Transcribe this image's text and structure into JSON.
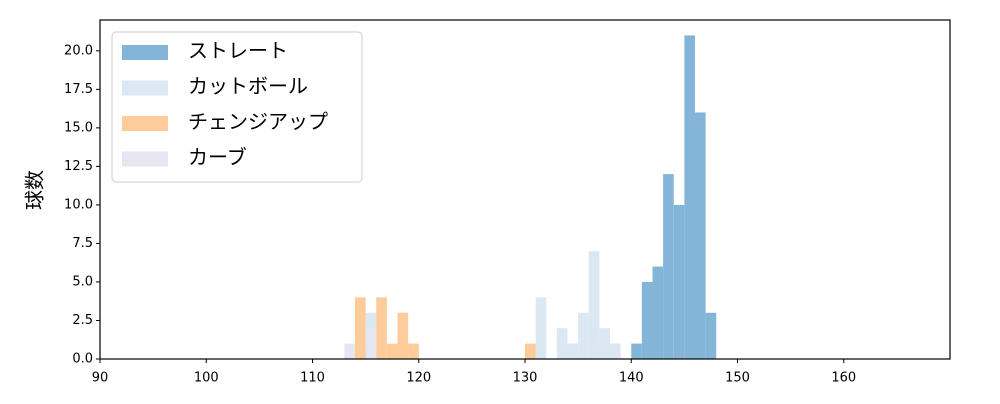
{
  "chart_data": {
    "type": "histogram",
    "ylabel": "球数",
    "xlim": [
      90,
      170
    ],
    "ylim": [
      0,
      22
    ],
    "xticks": [
      90,
      100,
      110,
      120,
      130,
      140,
      150,
      160
    ],
    "yticks": [
      {
        "value": 0,
        "label": "0.0"
      },
      {
        "value": 2.5,
        "label": "2.5"
      },
      {
        "value": 5,
        "label": "5.0"
      },
      {
        "value": 7.5,
        "label": "7.5"
      },
      {
        "value": 10,
        "label": "10.0"
      },
      {
        "value": 12.5,
        "label": "12.5"
      },
      {
        "value": 15,
        "label": "15.0"
      },
      {
        "value": 17.5,
        "label": "17.5"
      },
      {
        "value": 20,
        "label": "20.0"
      }
    ],
    "legend": "upper left",
    "series": [
      {
        "name": "ストレート",
        "color": "#84b5d9",
        "bins": [
          137,
          138,
          139,
          140,
          141,
          142,
          143,
          144,
          145,
          146,
          147,
          148
        ],
        "values": [
          1,
          0,
          0,
          1,
          5,
          6,
          12,
          10,
          21,
          16,
          3
        ]
      },
      {
        "name": "カットボール",
        "color": "#dbe7f3",
        "bins": [
          115,
          116,
          117,
          118,
          119,
          120,
          121,
          122,
          123,
          124,
          125,
          126,
          127,
          128,
          129,
          130,
          131,
          132,
          133,
          134,
          135,
          136,
          137,
          138,
          139
        ],
        "values": [
          3,
          0,
          0,
          0,
          0,
          0,
          0,
          0,
          0,
          0,
          0,
          0,
          0,
          0,
          0,
          0,
          4,
          0,
          2,
          1,
          3,
          7,
          2,
          1
        ]
      },
      {
        "name": "チェンジアップ",
        "color": "#fecb9b",
        "bins": [
          114,
          115,
          116,
          117,
          118,
          119,
          120,
          121,
          122,
          123,
          124,
          125,
          126,
          127,
          128,
          129,
          130,
          131
        ],
        "values": [
          4,
          1,
          4,
          1,
          3,
          1,
          0,
          0,
          0,
          0,
          0,
          0,
          0,
          0,
          0,
          0,
          1
        ]
      },
      {
        "name": "カーブ",
        "color": "#e6e6f0",
        "bins": [
          113,
          114,
          115,
          116
        ],
        "values": [
          1,
          0,
          2
        ]
      }
    ]
  }
}
